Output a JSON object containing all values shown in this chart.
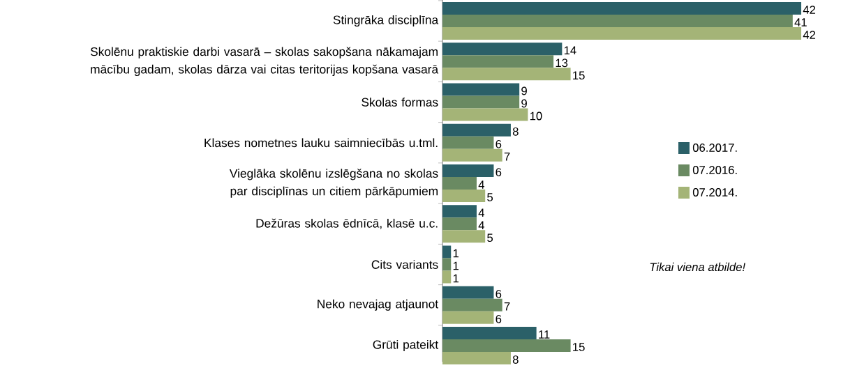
{
  "chart_data": {
    "type": "bar",
    "orientation": "horizontal",
    "categories": [
      "Stingrāka disciplīna",
      "Skolēnu praktiskie darbi vasarā – skolas sakopšana nākamajam mācību gadam, skolas dārza vai citas teritorijas kopšana vasarā",
      "Skolas formas",
      "Klases nometnes lauku saimniecībās u.tml.",
      "Vieglāka skolēnu izslēgšana no skolas par disciplīnas un citiem pārkāpumiem",
      "Dežūras skolas ēdnīcā, klasē u.c.",
      "Cits variants",
      "Neko nevajag atjaunot",
      "Grūti pateikt"
    ],
    "series": [
      {
        "name": "06.2017.",
        "color": "#2b6068",
        "values": [
          42,
          14,
          9,
          8,
          6,
          4,
          1,
          6,
          11
        ]
      },
      {
        "name": "07.2016.",
        "color": "#6a8a62",
        "values": [
          41,
          13,
          9,
          6,
          4,
          4,
          1,
          7,
          15
        ]
      },
      {
        "name": "07.2014.",
        "color": "#a4b477",
        "values": [
          42,
          15,
          10,
          7,
          5,
          5,
          1,
          6,
          8
        ]
      }
    ],
    "data_labels": true,
    "legend": "right",
    "annotations": [
      "Tikai viena atbilde!"
    ]
  }
}
